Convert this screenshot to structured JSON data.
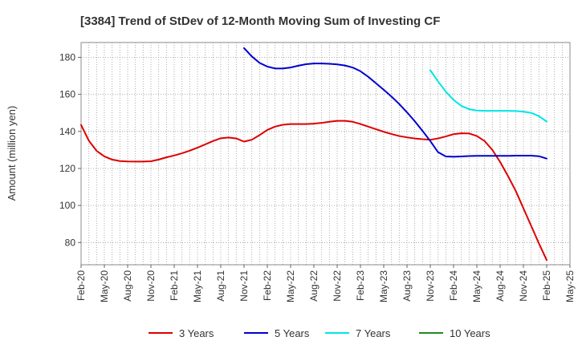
{
  "chart_data": {
    "type": "line",
    "title": "[3384]  Trend of StDev of 12-Month Moving Sum of Investing CF",
    "xlabel": "",
    "ylabel": "Amount (million yen)",
    "x_ticks": [
      "Feb-20",
      "May-20",
      "Aug-20",
      "Nov-20",
      "Feb-21",
      "May-21",
      "Aug-21",
      "Nov-21",
      "Feb-22",
      "May-22",
      "Aug-22",
      "Nov-22",
      "Feb-23",
      "May-23",
      "Aug-23",
      "Nov-23",
      "Feb-24",
      "May-24",
      "Aug-24",
      "Nov-24",
      "Feb-25",
      "May-25"
    ],
    "y_ticks": [
      80,
      100,
      120,
      140,
      160,
      180
    ],
    "ylim": [
      68,
      188
    ],
    "grid": true,
    "legend_position": "bottom",
    "series": [
      {
        "name": "3 Years",
        "color": "#dd0000",
        "points": [
          [
            "Feb-20",
            143.5
          ],
          [
            "Mar-20",
            135
          ],
          [
            "Apr-20",
            129.5
          ],
          [
            "May-20",
            126.5
          ],
          [
            "Jun-20",
            124.8
          ],
          [
            "Jul-20",
            124
          ],
          [
            "Aug-20",
            123.8
          ],
          [
            "Sep-20",
            123.7
          ],
          [
            "Oct-20",
            123.7
          ],
          [
            "Nov-20",
            123.9
          ],
          [
            "Dec-20",
            124.8
          ],
          [
            "Jan-21",
            126
          ],
          [
            "Feb-21",
            127
          ],
          [
            "Mar-21",
            128.2
          ],
          [
            "Apr-21",
            129.6
          ],
          [
            "May-21",
            131.2
          ],
          [
            "Jun-21",
            133
          ],
          [
            "Jul-21",
            134.8
          ],
          [
            "Aug-21",
            136.3
          ],
          [
            "Sep-21",
            136.7
          ],
          [
            "Oct-21",
            136.2
          ],
          [
            "Nov-21",
            134.5
          ],
          [
            "Dec-21",
            135.5
          ],
          [
            "Jan-22",
            138
          ],
          [
            "Feb-22",
            140.8
          ],
          [
            "Mar-22",
            142.6
          ],
          [
            "Apr-22",
            143.6
          ],
          [
            "May-22",
            144
          ],
          [
            "Jun-22",
            144
          ],
          [
            "Jul-22",
            144
          ],
          [
            "Aug-22",
            144.2
          ],
          [
            "Sep-22",
            144.6
          ],
          [
            "Oct-22",
            145.2
          ],
          [
            "Nov-22",
            145.7
          ],
          [
            "Dec-22",
            145.7
          ],
          [
            "Jan-23",
            145.2
          ],
          [
            "Feb-23",
            144
          ],
          [
            "Mar-23",
            142.6
          ],
          [
            "Apr-23",
            141.2
          ],
          [
            "May-23",
            139.8
          ],
          [
            "Jun-23",
            138.6
          ],
          [
            "Jul-23",
            137.5
          ],
          [
            "Aug-23",
            136.8
          ],
          [
            "Sep-23",
            136.2
          ],
          [
            "Oct-23",
            135.8
          ],
          [
            "Nov-23",
            135.5
          ],
          [
            "Dec-23",
            136.2
          ],
          [
            "Jan-24",
            137.3
          ],
          [
            "Feb-24",
            138.5
          ],
          [
            "Mar-24",
            139
          ],
          [
            "Apr-24",
            138.9
          ],
          [
            "May-24",
            137.5
          ],
          [
            "Jun-24",
            134.8
          ],
          [
            "Jul-24",
            130
          ],
          [
            "Aug-24",
            123.5
          ],
          [
            "Sep-24",
            116
          ],
          [
            "Oct-24",
            108
          ],
          [
            "Nov-24",
            98.5
          ],
          [
            "Dec-24",
            89
          ],
          [
            "Jan-25",
            79.5
          ],
          [
            "Feb-25",
            70.5
          ]
        ]
      },
      {
        "name": "5 Years",
        "color": "#0000cc",
        "points": [
          [
            "Nov-21",
            185
          ],
          [
            "Dec-21",
            180.5
          ],
          [
            "Jan-22",
            177
          ],
          [
            "Feb-22",
            175
          ],
          [
            "Mar-22",
            174
          ],
          [
            "Apr-22",
            174
          ],
          [
            "May-22",
            174.5
          ],
          [
            "Jun-22",
            175.5
          ],
          [
            "Jul-22",
            176.3
          ],
          [
            "Aug-22",
            176.7
          ],
          [
            "Sep-22",
            176.7
          ],
          [
            "Oct-22",
            176.5
          ],
          [
            "Nov-22",
            176.2
          ],
          [
            "Dec-22",
            175.6
          ],
          [
            "Jan-23",
            174.5
          ],
          [
            "Feb-23",
            172.5
          ],
          [
            "Mar-23",
            169.5
          ],
          [
            "Apr-23",
            166
          ],
          [
            "May-23",
            162.5
          ],
          [
            "Jun-23",
            158.8
          ],
          [
            "Jul-23",
            154.8
          ],
          [
            "Aug-23",
            150.3
          ],
          [
            "Sep-23",
            145.5
          ],
          [
            "Oct-23",
            140.3
          ],
          [
            "Nov-23",
            134.8
          ],
          [
            "Dec-23",
            128.8
          ],
          [
            "Jan-24",
            126.5
          ],
          [
            "Feb-24",
            126.3
          ],
          [
            "Mar-24",
            126.5
          ],
          [
            "Apr-24",
            126.7
          ],
          [
            "May-24",
            126.8
          ],
          [
            "Jun-24",
            126.8
          ],
          [
            "Jul-24",
            126.8
          ],
          [
            "Aug-24",
            126.8
          ],
          [
            "Sep-24",
            126.8
          ],
          [
            "Oct-24",
            126.9
          ],
          [
            "Nov-24",
            126.9
          ],
          [
            "Dec-24",
            126.9
          ],
          [
            "Jan-25",
            126.6
          ],
          [
            "Feb-25",
            125.3
          ]
        ]
      },
      {
        "name": "7 Years",
        "color": "#00e5e5",
        "points": [
          [
            "Nov-23",
            173
          ],
          [
            "Dec-23",
            167
          ],
          [
            "Jan-24",
            161.5
          ],
          [
            "Feb-24",
            157
          ],
          [
            "Mar-24",
            153.8
          ],
          [
            "Apr-24",
            152
          ],
          [
            "May-24",
            151.3
          ],
          [
            "Jun-24",
            151.1
          ],
          [
            "Jul-24",
            151.1
          ],
          [
            "Aug-24",
            151.1
          ],
          [
            "Sep-24",
            151.1
          ],
          [
            "Oct-24",
            151
          ],
          [
            "Nov-24",
            150.7
          ],
          [
            "Dec-24",
            150
          ],
          [
            "Jan-25",
            148.3
          ],
          [
            "Feb-25",
            145.3
          ]
        ]
      },
      {
        "name": "10 Years",
        "color": "#228b22",
        "points": []
      }
    ]
  }
}
